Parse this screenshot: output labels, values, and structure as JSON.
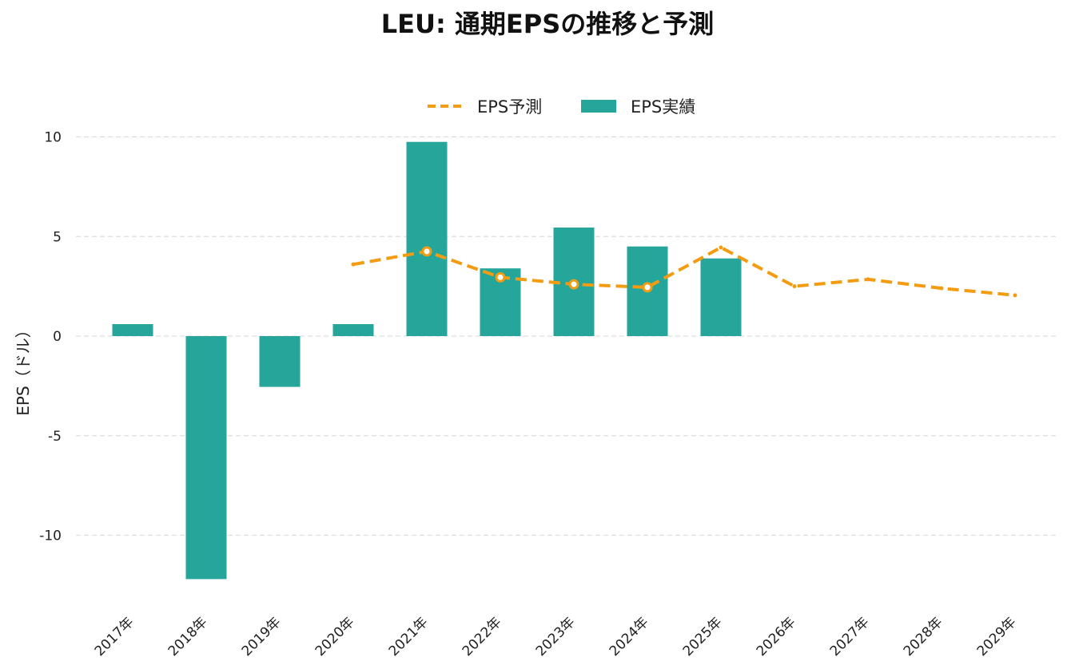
{
  "chart_data": {
    "type": "bar",
    "title": "LEU: 通期EPSの推移と予測",
    "xlabel": "",
    "ylabel": "EPS（ドル）",
    "categories": [
      "2017年",
      "2018年",
      "2019年",
      "2020年",
      "2021年",
      "2022年",
      "2023年",
      "2024年",
      "2025年",
      "2026年",
      "2027年",
      "2028年",
      "2029年"
    ],
    "ylim": [
      -13,
      10.5
    ],
    "yticks": [
      10,
      5,
      0,
      -5,
      -10
    ],
    "ytick_labels": [
      "10",
      "5",
      "0",
      "-5",
      "-10"
    ],
    "grid": true,
    "legend_position": "top-center",
    "series": [
      {
        "name": "EPS予測",
        "kind": "line",
        "style": "dashed",
        "color": "#F39C12",
        "values": [
          null,
          null,
          null,
          3.6,
          4.25,
          2.95,
          2.6,
          2.45,
          4.45,
          2.5,
          2.85,
          2.4,
          2.05
        ],
        "markers": [
          null,
          null,
          null,
          "none",
          "circle",
          "circle",
          "circle",
          "circle",
          "none",
          "none",
          "none",
          "none",
          "none"
        ]
      },
      {
        "name": "EPS実績",
        "kind": "bar",
        "color": "#26A69A",
        "values": [
          0.6,
          -12.2,
          -2.55,
          0.6,
          9.75,
          3.4,
          5.45,
          4.5,
          3.9,
          null,
          null,
          null,
          null
        ]
      }
    ]
  }
}
